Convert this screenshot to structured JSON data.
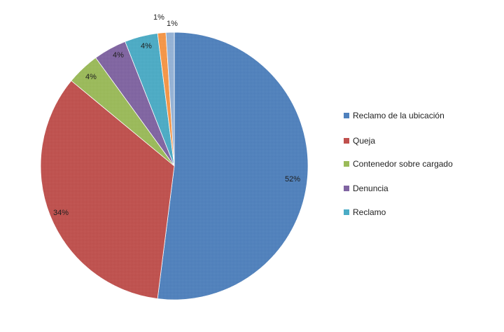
{
  "chart_data": {
    "type": "pie",
    "title": "",
    "start_angle_deg": 0,
    "direction": "clockwise",
    "legend_position": "right",
    "slices": [
      {
        "name": "Reclamo de la ubicación",
        "value": 52,
        "label": "52%",
        "color": "#4F81BD"
      },
      {
        "name": "Queja",
        "value": 34,
        "label": "34%",
        "color": "#C0504D"
      },
      {
        "name": "Contenedor sobre cargado",
        "value": 4,
        "label": "4%",
        "color": "#9BBB59"
      },
      {
        "name": "Denuncia",
        "value": 4,
        "label": "4%",
        "color": "#8064A2"
      },
      {
        "name": "Reclamo",
        "value": 4,
        "label": "4%",
        "color": "#4BACC6"
      },
      {
        "name": "",
        "value": 1,
        "label": "1%",
        "color": "#F79646"
      },
      {
        "name": "",
        "value": 1,
        "label": "1%",
        "color": "#95B3D7"
      }
    ],
    "legend": [
      {
        "text": "Reclamo de la ubicación",
        "color": "#4F81BD"
      },
      {
        "text": "Queja",
        "color": "#C0504D"
      },
      {
        "text": "Contenedor sobre cargado",
        "color": "#9BBB59"
      },
      {
        "text": "Denuncia",
        "color": "#8064A2"
      },
      {
        "text": "Reclamo",
        "color": "#4BACC6"
      }
    ]
  }
}
